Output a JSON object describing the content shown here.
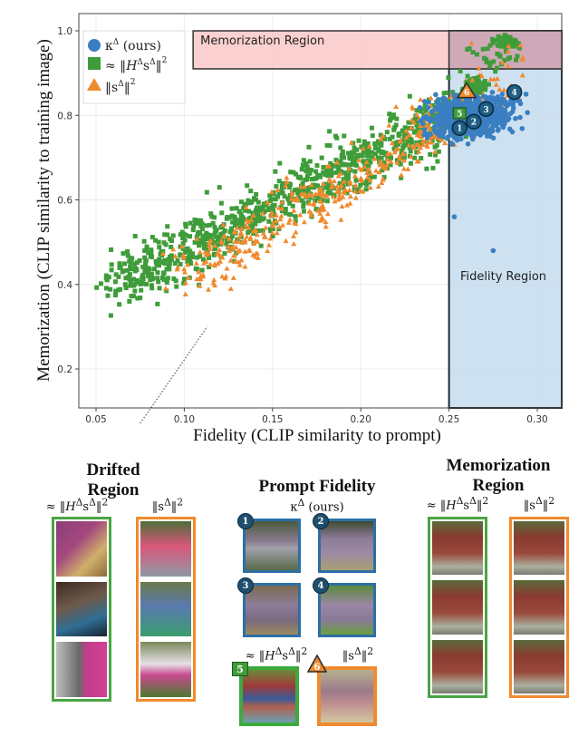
{
  "chart_data": {
    "type": "scatter",
    "title": "",
    "xlabel": "Fidelity (CLIP similarity to prompt)",
    "ylabel": "Memorization (CLIP similarity to training image)",
    "xlim": [
      0.04,
      0.315
    ],
    "ylim": [
      0.11,
      1.02
    ],
    "xticks": [
      "0.05",
      "0.10",
      "0.15",
      "0.20",
      "0.25",
      "0.30"
    ],
    "yticks": [
      "0.2",
      "0.4",
      "0.6",
      "0.8",
      "1.0"
    ],
    "grid": true,
    "legend_position": "top-left",
    "series": [
      {
        "name": "κ^Δ (ours)",
        "marker": "circle",
        "color": "#3a7fc1",
        "description": "dense cluster at fidelity 0.21–0.30, memorization 0.70–0.88; outliers near (0.275, 0.48), (0.252, 0.56)",
        "cluster": {
          "x_center": 0.262,
          "y_center": 0.8,
          "x_spread": 0.02,
          "y_spread": 0.04,
          "count": 700
        }
      },
      {
        "name": "≈ ‖H^Δ s^Δ‖²",
        "marker": "square",
        "color": "#3f9c3a",
        "description": "broad diagonal band from (0.06, 0.38) to (0.28, 0.98), dense memorized cluster at (0.28, 0.97)",
        "band": {
          "x_from": 0.06,
          "x_to": 0.26,
          "y_from": 0.4,
          "y_to": 0.82,
          "count": 900
        },
        "cluster": {
          "x_center": 0.283,
          "y_center": 0.975,
          "count": 80
        }
      },
      {
        "name": "‖s^Δ‖²",
        "marker": "triangle",
        "color": "#f08a2e",
        "description": "band overlapping green from (0.10, 0.40) to (0.29, 0.98)",
        "band": {
          "x_from": 0.1,
          "x_to": 0.28,
          "y_from": 0.42,
          "y_to": 0.86,
          "count": 450
        }
      }
    ],
    "highlighted_points": [
      {
        "label": "1",
        "series": "κ^Δ (ours)",
        "x": 0.256,
        "y": 0.77
      },
      {
        "label": "2",
        "series": "κ^Δ (ours)",
        "x": 0.264,
        "y": 0.785
      },
      {
        "label": "3",
        "series": "κ^Δ (ours)",
        "x": 0.271,
        "y": 0.815
      },
      {
        "label": "4",
        "series": "κ^Δ (ours)",
        "x": 0.287,
        "y": 0.855
      },
      {
        "label": "5",
        "series": "≈ ‖H^Δ s^Δ‖²",
        "x": 0.256,
        "y": 0.805
      },
      {
        "label": "6",
        "series": "‖s^Δ‖²",
        "x": 0.26,
        "y": 0.855
      }
    ],
    "regions": [
      {
        "name": "Memorization Region",
        "x_range": [
          0.105,
          0.315
        ],
        "y_range": [
          0.91,
          1.0
        ],
        "color": "#f9c8c8"
      },
      {
        "name": "Fidelity Region",
        "x_range": [
          0.25,
          0.315
        ],
        "y_range": [
          0.11,
          1.0
        ],
        "color": "#c5dcef"
      }
    ],
    "reference_line": {
      "style": "dotted",
      "from": [
        0.075,
        0.11
      ],
      "to": [
        0.113,
        0.3
      ]
    }
  },
  "legend": {
    "items": [
      {
        "main": "κ",
        "sup": "Δ",
        "rest": " (ours)"
      },
      {
        "main": "≈ ‖H",
        "sup": "Δ",
        "rest": "s",
        "sup2": "Δ",
        "tail": "‖",
        "pow": "2"
      },
      {
        "main": "‖s",
        "sup": "Δ",
        "tail": "‖",
        "pow": "2"
      }
    ]
  },
  "panels": {
    "drifted": {
      "title_line1": "Drifted",
      "title_line2": "Region",
      "col1_label": "≈ ‖HΔsΔ‖²",
      "col2_label": "‖sΔ‖²"
    },
    "fidelity": {
      "title": "Prompt Fidelity",
      "subtitle": "κΔ (ours)",
      "badges": [
        "1",
        "2",
        "3",
        "4"
      ],
      "label5": "≈ ‖HΔsΔ‖²",
      "label6": "‖sΔ‖²",
      "badge5": "5",
      "badge6": "6"
    },
    "memorization": {
      "title_line1": "Memorization",
      "title_line2": "Region",
      "col1_label": "≈ ‖HΔsΔ‖²",
      "col2_label": "‖sΔ‖²"
    }
  },
  "colors": {
    "blue": "#3a7fc1",
    "green": "#3f9c3a",
    "orange": "#f08a2e",
    "badge": "#1f4e6e",
    "memo_region": "#f9c8c8",
    "fid_region": "#c5dcef"
  }
}
